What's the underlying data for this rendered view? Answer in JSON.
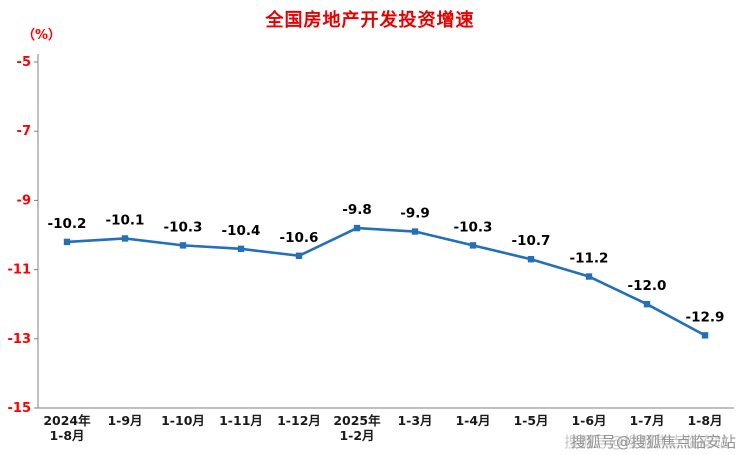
{
  "page": {
    "title": "全国房地产开发投资增速",
    "unit_label": "（%）"
  },
  "watermark": {
    "text": "搜狐号@搜狐焦点临安站"
  },
  "colors": {
    "title": "#e60000",
    "y_axis_text": "#ff0000",
    "x_axis_text": "#1a1a1a",
    "data_label": "#000000",
    "line": "#2470b8",
    "axis_line": "#808080",
    "background": "#ffffff"
  },
  "chart_data": {
    "type": "line",
    "title": "全国房地产开发投资增速",
    "ylabel": "（%）",
    "xlabel": "",
    "grid": false,
    "legend": "none",
    "ylim": [
      -15,
      -5
    ],
    "yticks": [
      -5,
      -7,
      -9,
      -11,
      -13,
      -15
    ],
    "categories": [
      "2024年\n1-8月",
      "1-9月",
      "1-10月",
      "1-11月",
      "1-12月",
      "2025年\n1-2月",
      "1-3月",
      "1-4月",
      "1-5月",
      "1-6月",
      "1-7月",
      "1-8月"
    ],
    "values": [
      -10.2,
      -10.1,
      -10.3,
      -10.4,
      -10.6,
      -9.8,
      -9.9,
      -10.3,
      -10.7,
      -11.2,
      -12.0,
      -12.9
    ],
    "labels": [
      "-10.2",
      "-10.1",
      "-10.3",
      "-10.4",
      "-10.6",
      "-9.8",
      "-9.9",
      "-10.3",
      "-10.7",
      "-11.2",
      "-12.0",
      "-12.9"
    ],
    "marker": "square"
  }
}
